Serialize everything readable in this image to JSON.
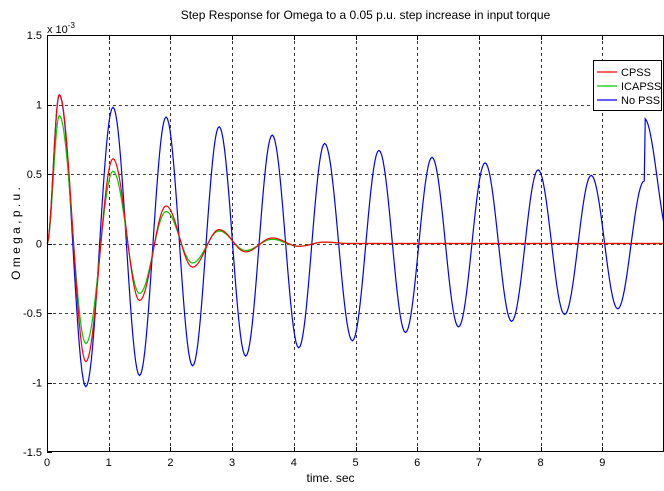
{
  "chart_data": {
    "type": "line",
    "title": "Step Response for Omega to a 0.05 p.u. step increase in input torque",
    "xlabel": "time. sec",
    "ylabel": "O m e g a ,  p . u .",
    "y_exponent_label": "x 10",
    "y_exponent_power": "-3",
    "xlim": [
      0,
      10
    ],
    "ylim": [
      -1.5,
      1.5
    ],
    "xticks": [
      "0",
      "1",
      "2",
      "3",
      "4",
      "5",
      "6",
      "7",
      "8",
      "9"
    ],
    "xtick_values": [
      0,
      1,
      2,
      3,
      4,
      5,
      6,
      7,
      8,
      9
    ],
    "yticks": [
      "-1.5",
      "-1",
      "-0.5",
      "0",
      "0.5",
      "1",
      "1.5"
    ],
    "ytick_values": [
      -1.5,
      -1,
      -0.5,
      0,
      0.5,
      1,
      1.5
    ],
    "y_unit_scale": 0.001,
    "grid": true,
    "grid_style": "dashed",
    "legend_position": "top-right",
    "series": [
      {
        "name": "CPSS",
        "color": "#ff0000",
        "x": [
          0,
          0.2,
          0.63,
          1.07,
          1.5,
          1.93,
          2.36,
          2.79,
          3.22,
          3.65,
          4.08,
          4.5,
          4.9,
          10
        ],
        "y": [
          0,
          1.07,
          -0.85,
          0.61,
          -0.41,
          0.27,
          -0.17,
          0.1,
          -0.06,
          0.04,
          -0.02,
          0.01,
          0,
          0
        ]
      },
      {
        "name": "ICAPSS",
        "color": "#00cc00",
        "x": [
          0,
          0.2,
          0.63,
          1.07,
          1.5,
          1.93,
          2.36,
          2.79,
          3.22,
          3.65,
          4.08,
          4.5,
          4.9,
          10
        ],
        "y": [
          0,
          0.92,
          -0.72,
          0.52,
          -0.36,
          0.23,
          -0.14,
          0.09,
          -0.05,
          0.03,
          -0.02,
          0.01,
          0,
          0
        ]
      },
      {
        "name": "No PSS",
        "color": "#0000ff",
        "x": [
          0,
          0.2,
          0.63,
          1.07,
          1.5,
          1.93,
          2.36,
          2.79,
          3.22,
          3.65,
          4.08,
          4.5,
          4.95,
          5.38,
          5.81,
          6.24,
          6.67,
          7.1,
          7.53,
          7.96,
          8.39,
          8.82,
          9.25,
          9.68
        ],
        "y": [
          0,
          1.07,
          -1.03,
          0.98,
          -0.95,
          0.91,
          -0.88,
          0.84,
          -0.81,
          0.78,
          -0.75,
          0.72,
          -0.7,
          0.67,
          -0.64,
          0.62,
          -0.6,
          0.58,
          -0.56,
          0.53,
          -0.51,
          0.49,
          -0.47,
          0.45
        ]
      }
    ]
  }
}
